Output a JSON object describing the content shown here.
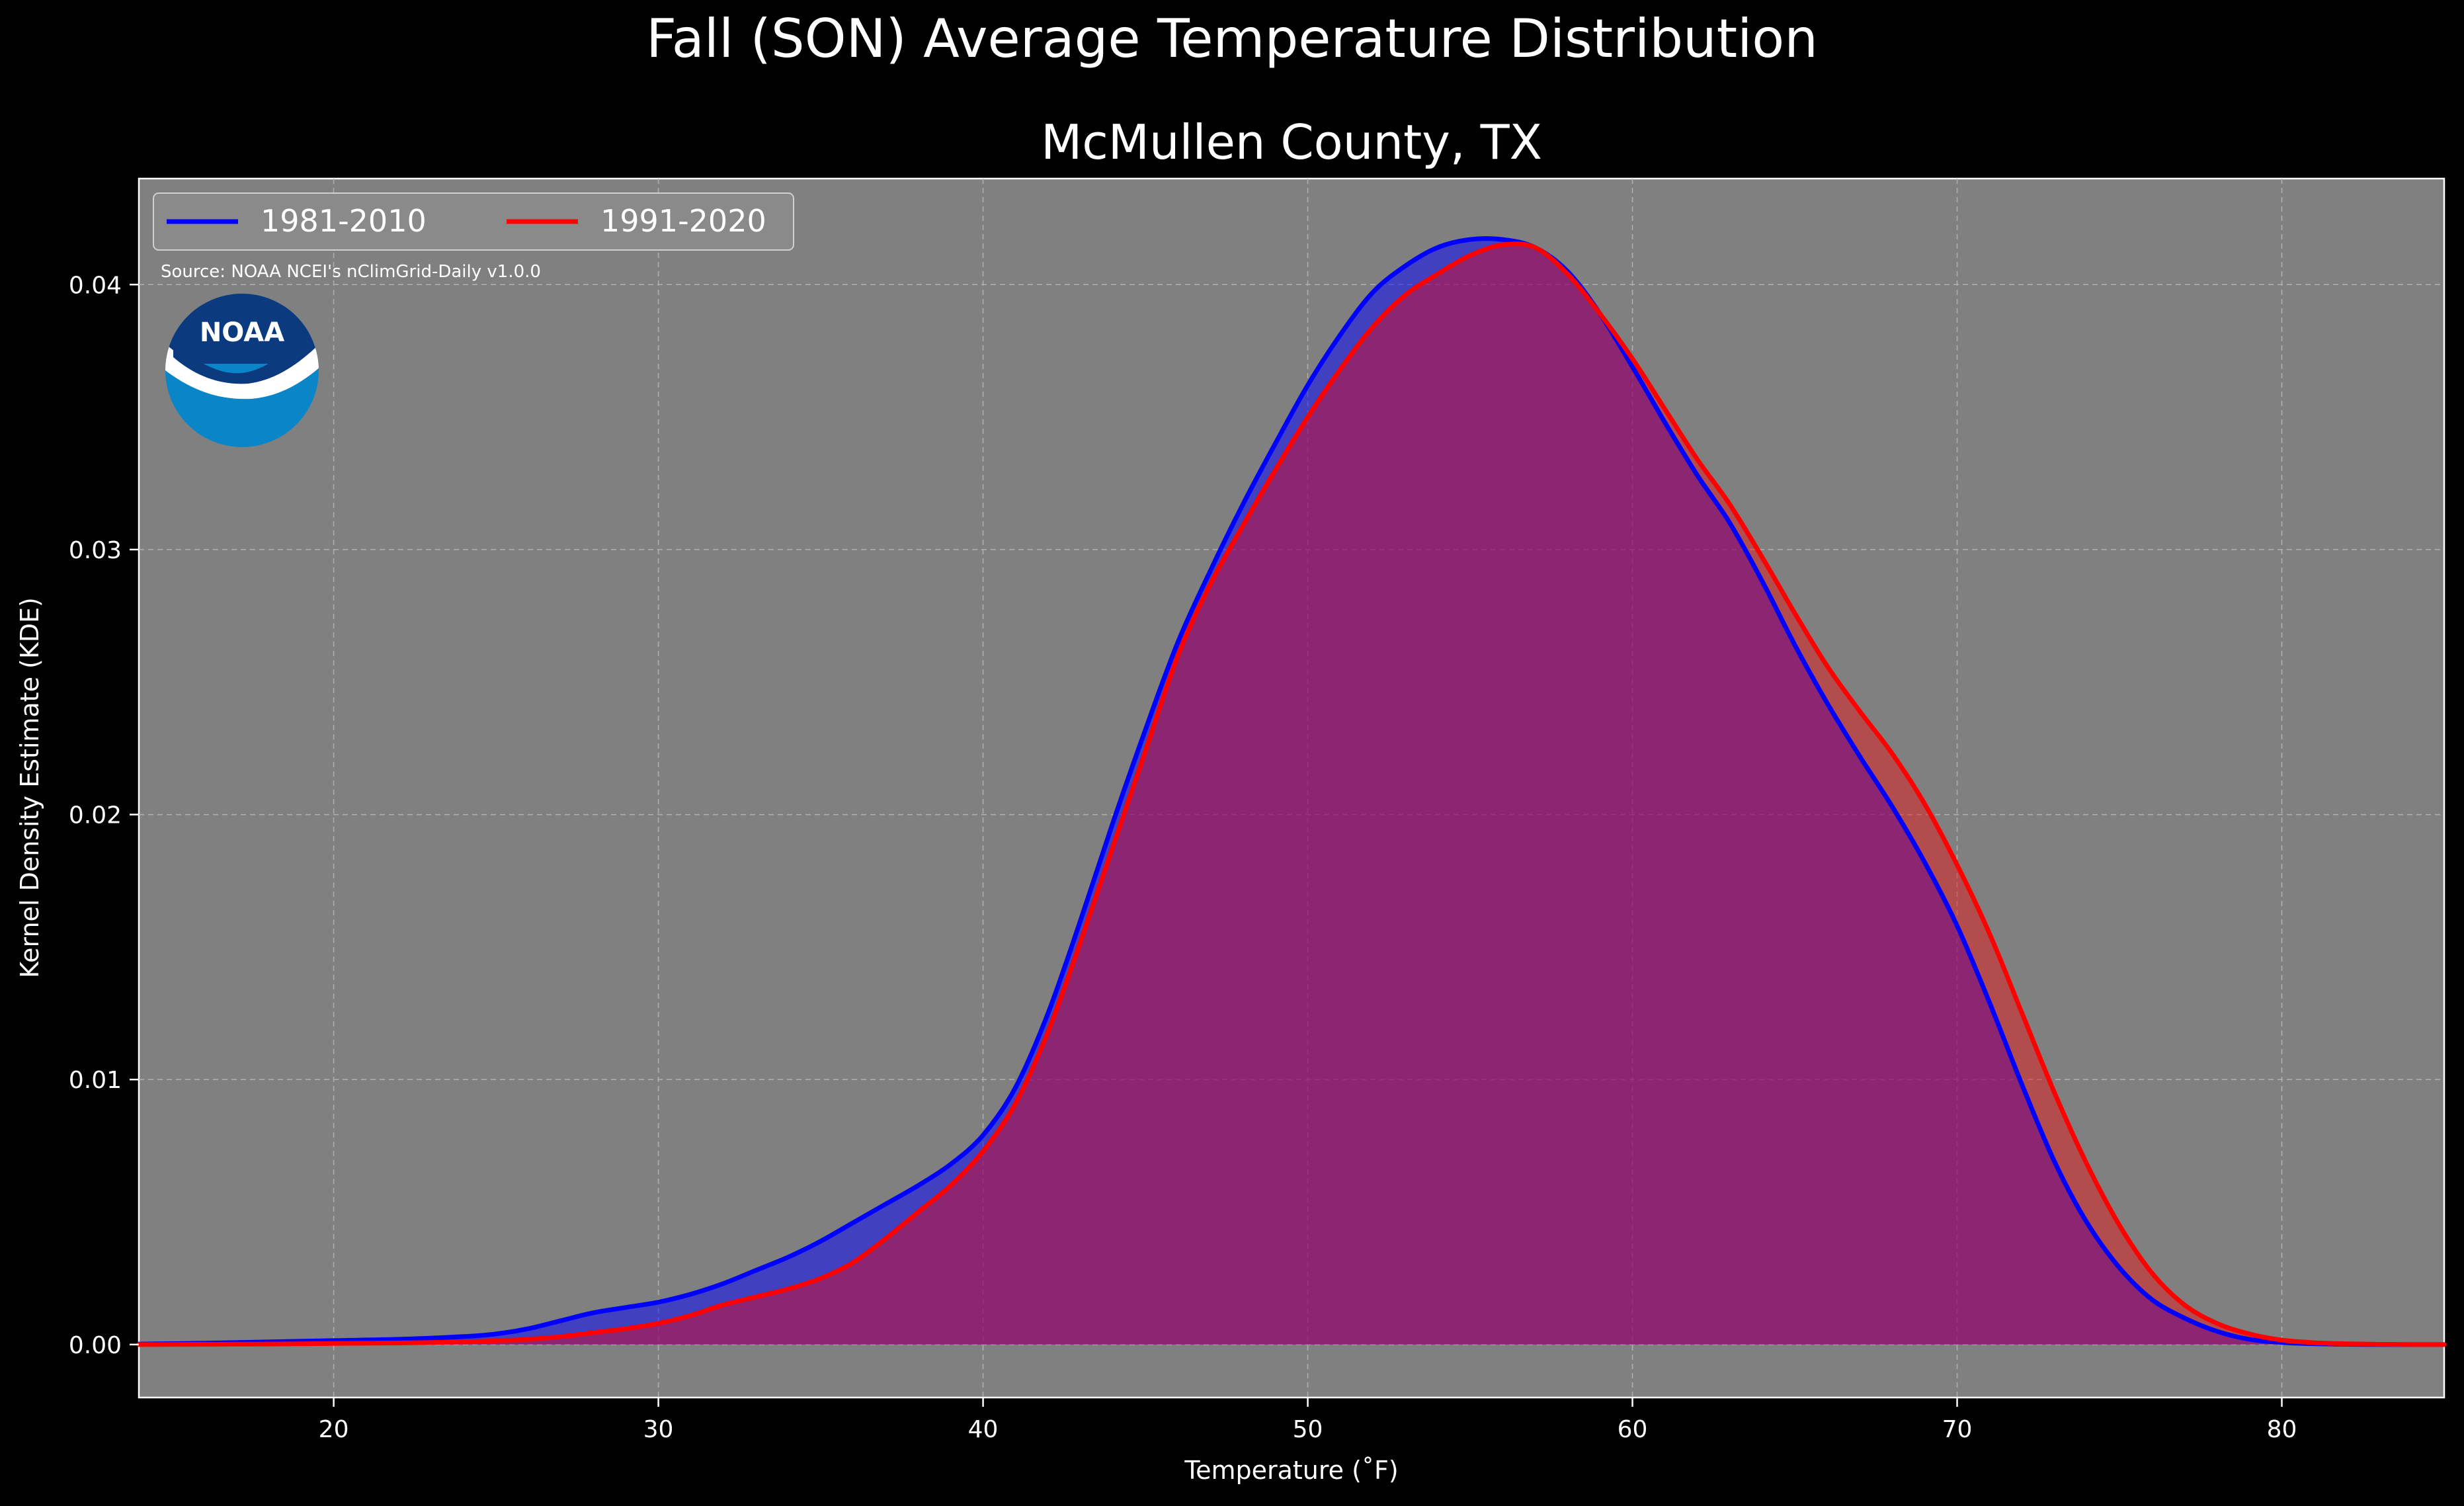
{
  "chart_data": {
    "type": "area",
    "title": "Fall (SON) Average Temperature Distribution",
    "subtitle": "McMullen County, TX",
    "xlabel": "Temperature ($^\\circ$F)",
    "xlabel_display": "Temperature (˚F)",
    "ylabel": "Kernel Density Estimate (KDE)",
    "source": "Source: NOAA NCEI's nClimGrid-Daily v1.0.0",
    "logo_text": "NOAA",
    "xlim": [
      14,
      85
    ],
    "ylim": [
      -0.002,
      0.044
    ],
    "xticks": [
      20,
      30,
      40,
      50,
      60,
      70,
      80
    ],
    "xtick_labels": [
      "20",
      "30",
      "40",
      "50",
      "60",
      "70",
      "80"
    ],
    "yticks": [
      0.0,
      0.01,
      0.02,
      0.03,
      0.04
    ],
    "ytick_labels": [
      "0.00",
      "0.01",
      "0.02",
      "0.03",
      "0.04"
    ],
    "grid": true,
    "legend_position": "top-left",
    "background_color": "#808080",
    "series": [
      {
        "name": "1981-2010",
        "color": "#0000ff",
        "fill_color": "rgba(0,0,255,0.5)",
        "x": [
          14,
          16,
          18,
          20,
          22,
          24,
          25,
          26,
          27,
          28,
          29,
          30,
          31,
          32,
          33,
          34,
          35,
          36,
          37,
          38,
          39,
          40,
          41,
          42,
          43,
          44,
          45,
          46,
          47,
          48,
          49,
          50,
          51,
          52,
          53,
          54,
          55,
          56,
          57,
          58,
          59,
          60,
          61,
          62,
          63,
          64,
          65,
          66,
          67,
          68,
          69,
          70,
          71,
          72,
          73,
          74,
          75,
          76,
          77,
          78,
          79,
          80,
          81,
          82,
          83,
          84,
          85
        ],
        "y": [
          2e-05,
          5e-05,
          0.0001,
          0.00015,
          0.0002,
          0.0003,
          0.0004,
          0.0006,
          0.0009,
          0.0012,
          0.0014,
          0.0016,
          0.0019,
          0.0023,
          0.0028,
          0.0033,
          0.0039,
          0.0046,
          0.0053,
          0.006,
          0.0068,
          0.0079,
          0.0097,
          0.0125,
          0.016,
          0.0197,
          0.0232,
          0.0265,
          0.0292,
          0.0317,
          0.034,
          0.0362,
          0.0381,
          0.0397,
          0.0407,
          0.0414,
          0.0417,
          0.0417,
          0.0414,
          0.0405,
          0.0389,
          0.0369,
          0.0348,
          0.0328,
          0.031,
          0.0288,
          0.0264,
          0.0242,
          0.0222,
          0.0203,
          0.0182,
          0.0158,
          0.0129,
          0.0098,
          0.0069,
          0.0046,
          0.0029,
          0.0017,
          0.001,
          0.0005,
          0.0002,
          8e-05,
          3e-05,
          1e-05,
          0.0,
          0.0,
          0.0
        ]
      },
      {
        "name": "1991-2020",
        "color": "#ff0000",
        "fill_color": "rgba(255,0,0,0.4)",
        "x": [
          14,
          16,
          18,
          20,
          22,
          24,
          25,
          26,
          27,
          28,
          29,
          30,
          31,
          32,
          33,
          34,
          35,
          36,
          37,
          38,
          39,
          40,
          41,
          42,
          43,
          44,
          45,
          46,
          47,
          48,
          49,
          50,
          51,
          52,
          53,
          54,
          55,
          56,
          57,
          58,
          59,
          60,
          61,
          62,
          63,
          64,
          65,
          66,
          67,
          68,
          69,
          70,
          71,
          72,
          73,
          74,
          75,
          76,
          77,
          78,
          79,
          80,
          81,
          82,
          83,
          84,
          85
        ],
        "y": [
          0.0,
          1e-05,
          2e-05,
          4e-05,
          6e-05,
          0.0001,
          0.00014,
          0.0002,
          0.0003,
          0.00045,
          0.0006,
          0.0008,
          0.0011,
          0.0015,
          0.0018,
          0.0021,
          0.0025,
          0.0031,
          0.004,
          0.005,
          0.006,
          0.0073,
          0.0091,
          0.0118,
          0.0152,
          0.0188,
          0.0224,
          0.026,
          0.0287,
          0.0309,
          0.033,
          0.035,
          0.0368,
          0.0384,
          0.0396,
          0.0404,
          0.0411,
          0.0415,
          0.0414,
          0.0404,
          0.0389,
          0.0372,
          0.0353,
          0.0334,
          0.0317,
          0.0297,
          0.0276,
          0.0256,
          0.0239,
          0.0223,
          0.0204,
          0.0181,
          0.0155,
          0.0125,
          0.0095,
          0.0068,
          0.0045,
          0.0027,
          0.0015,
          0.0008,
          0.0004,
          0.00017,
          7e-05,
          3e-05,
          1e-05,
          0.0,
          0.0
        ]
      }
    ]
  }
}
